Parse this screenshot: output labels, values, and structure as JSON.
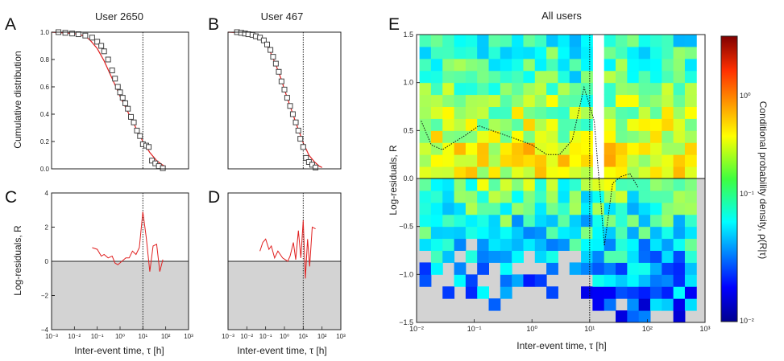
{
  "colors": {
    "fit": "#e02020",
    "residual": "#e02020",
    "neg_region": "#d3d3d3",
    "marker": "#444444"
  },
  "chart_data": [
    {
      "panel": "A",
      "type": "scatter",
      "title": "User 2650",
      "xlabel": "",
      "ylabel": "Cumulative distribution",
      "xscale": "log",
      "xlim": [
        0.001,
        1000
      ],
      "ylim": [
        0,
        1
      ],
      "yticks": [
        "0.0",
        "0.2",
        "0.4",
        "0.6",
        "0.8",
        "1.0"
      ],
      "vline": 10,
      "points": {
        "x": [
          0.002,
          0.004,
          0.008,
          0.015,
          0.03,
          0.06,
          0.1,
          0.15,
          0.2,
          0.3,
          0.45,
          0.6,
          0.8,
          1,
          1.3,
          1.7,
          2.2,
          3,
          4,
          5.5,
          7.5,
          10,
          14,
          18,
          25,
          35,
          50,
          75
        ],
        "y": [
          1,
          0.995,
          0.99,
          0.985,
          0.975,
          0.96,
          0.93,
          0.9,
          0.86,
          0.8,
          0.72,
          0.66,
          0.6,
          0.56,
          0.52,
          0.48,
          0.44,
          0.38,
          0.34,
          0.28,
          0.24,
          0.18,
          0.17,
          0.16,
          0.06,
          0.04,
          0.02,
          0.005
        ]
      },
      "fit": {
        "x": [
          0.001,
          0.01,
          0.03,
          0.05,
          0.1,
          0.2,
          0.4,
          0.7,
          1,
          2,
          4,
          7,
          10,
          20,
          40,
          70,
          100
        ],
        "y": [
          1,
          0.99,
          0.97,
          0.94,
          0.88,
          0.79,
          0.68,
          0.59,
          0.53,
          0.43,
          0.33,
          0.25,
          0.2,
          0.12,
          0.06,
          0.03,
          0.015
        ]
      }
    },
    {
      "panel": "B",
      "type": "scatter",
      "title": "User 467",
      "xlabel": "",
      "ylabel": "",
      "xscale": "log",
      "xlim": [
        0.001,
        1000
      ],
      "ylim": [
        0,
        1
      ],
      "vline": 10,
      "points": {
        "x": [
          0.003,
          0.005,
          0.008,
          0.012,
          0.02,
          0.03,
          0.05,
          0.08,
          0.12,
          0.18,
          0.25,
          0.35,
          0.5,
          0.7,
          1,
          1.4,
          2,
          2.8,
          4,
          5.5,
          7,
          10,
          14,
          20,
          30,
          45
        ],
        "y": [
          1,
          0.995,
          0.99,
          0.985,
          0.98,
          0.97,
          0.96,
          0.94,
          0.91,
          0.87,
          0.82,
          0.77,
          0.71,
          0.64,
          0.58,
          0.52,
          0.46,
          0.4,
          0.34,
          0.28,
          0.22,
          0.16,
          0.08,
          0.05,
          0.03,
          0.01
        ]
      },
      "fit": {
        "x": [
          0.001,
          0.01,
          0.03,
          0.05,
          0.1,
          0.2,
          0.4,
          0.7,
          1,
          2,
          4,
          7,
          10,
          20,
          40,
          70,
          100
        ],
        "y": [
          1,
          0.995,
          0.98,
          0.96,
          0.92,
          0.84,
          0.74,
          0.65,
          0.58,
          0.46,
          0.34,
          0.25,
          0.19,
          0.1,
          0.05,
          0.02,
          0.01
        ]
      }
    },
    {
      "panel": "C",
      "type": "line",
      "title": "",
      "xlabel": "Inter-event time,  τ  [h]",
      "ylabel": "Log-residuals, R",
      "xscale": "log",
      "xlim": [
        0.001,
        1000
      ],
      "ylim": [
        -4,
        4
      ],
      "xticks": [
        "10⁻³",
        "10⁻²",
        "10⁻¹",
        "10⁰",
        "10¹",
        "10²",
        "10³"
      ],
      "yticks": [
        "−4",
        "−2",
        "0",
        "2",
        "4"
      ],
      "vline": 10,
      "x": [
        0.06,
        0.1,
        0.15,
        0.2,
        0.3,
        0.45,
        0.6,
        0.8,
        1.2,
        1.8,
        2.5,
        3.5,
        5,
        7,
        10,
        14,
        20,
        28,
        40,
        55,
        75
      ],
      "y": [
        0.8,
        0.7,
        0.3,
        0.4,
        0.2,
        0.3,
        -0.1,
        -0.2,
        0,
        0.2,
        0.2,
        0.6,
        0.4,
        0.8,
        2.9,
        1.4,
        -0.6,
        0.9,
        1,
        -0.6,
        0.1
      ]
    },
    {
      "panel": "D",
      "type": "line",
      "title": "",
      "xlabel": "Inter-event time,  τ  [h]",
      "ylabel": "",
      "xscale": "log",
      "xlim": [
        0.001,
        1000
      ],
      "ylim": [
        -4,
        4
      ],
      "xticks": [
        "10⁻³",
        "10⁻²",
        "10⁻¹",
        "10⁰",
        "10¹",
        "10²",
        "10³"
      ],
      "vline": 10,
      "x": [
        0.05,
        0.07,
        0.1,
        0.15,
        0.2,
        0.3,
        0.45,
        0.6,
        0.8,
        1.1,
        1.5,
        2,
        3,
        4,
        5.5,
        7.5,
        10,
        13,
        17,
        22,
        30,
        45
      ],
      "y": [
        0.6,
        1.1,
        1.3,
        0.7,
        0.9,
        0.2,
        0.6,
        0.4,
        0.2,
        0.1,
        0,
        0.3,
        1.1,
        0.1,
        1.8,
        0.2,
        2.4,
        -1,
        1.3,
        -0.3,
        2,
        1.9
      ]
    },
    {
      "panel": "E",
      "type": "heatmap",
      "title": "All users",
      "xlabel": "Inter-event time,  τ  [h]",
      "ylabel": "Log-residuals, R",
      "xscale": "log",
      "xlim": [
        0.01,
        1000
      ],
      "ylim": [
        -1.5,
        1.5
      ],
      "xticks": [
        "10⁻²",
        "10⁻¹",
        "10⁰",
        "10¹",
        "10²",
        "10³"
      ],
      "yticks": [
        "−1.5",
        "−1.0",
        "−0.5",
        "0.0",
        "0.5",
        "1.0",
        "1.5"
      ],
      "vline": 10,
      "colorbar": {
        "label": "Conditional probability density, ρ(R|τ)",
        "scale": "log",
        "range": [
          0.01,
          3
        ],
        "ticks": [
          "10⁰",
          "10⁻¹",
          "10⁻²"
        ]
      },
      "bins": {
        "x_log_edges": [
          -1.95,
          -1.75,
          -1.55,
          -1.35,
          -1.15,
          -0.95,
          -0.75,
          -0.55,
          -0.35,
          -0.15,
          0.05,
          0.25,
          0.45,
          0.65,
          0.85,
          1.05,
          1.25,
          1.45,
          1.65,
          1.85,
          2.05,
          2.25,
          2.45,
          2.65,
          2.85
        ],
        "y_edges": [
          -1.5,
          1.5
        ],
        "n_rows": 24
      },
      "grid_row_mask_note": "",
      "dotted_curve": {
        "x": [
          0.012,
          0.018,
          0.028,
          0.045,
          0.07,
          0.12,
          0.2,
          0.35,
          0.6,
          1,
          1.8,
          3,
          5,
          8,
          12,
          18,
          25,
          35,
          50,
          70
        ],
        "y": [
          0.6,
          0.35,
          0.3,
          0.38,
          0.45,
          0.55,
          0.5,
          0.45,
          0.4,
          0.35,
          0.25,
          0.25,
          0.4,
          0.95,
          0.6,
          -0.7,
          -0.05,
          0.02,
          0.05,
          -0.1
        ]
      }
    }
  ],
  "panel_labels": {
    "A": "A",
    "B": "B",
    "C": "C",
    "D": "D",
    "E": "E"
  }
}
